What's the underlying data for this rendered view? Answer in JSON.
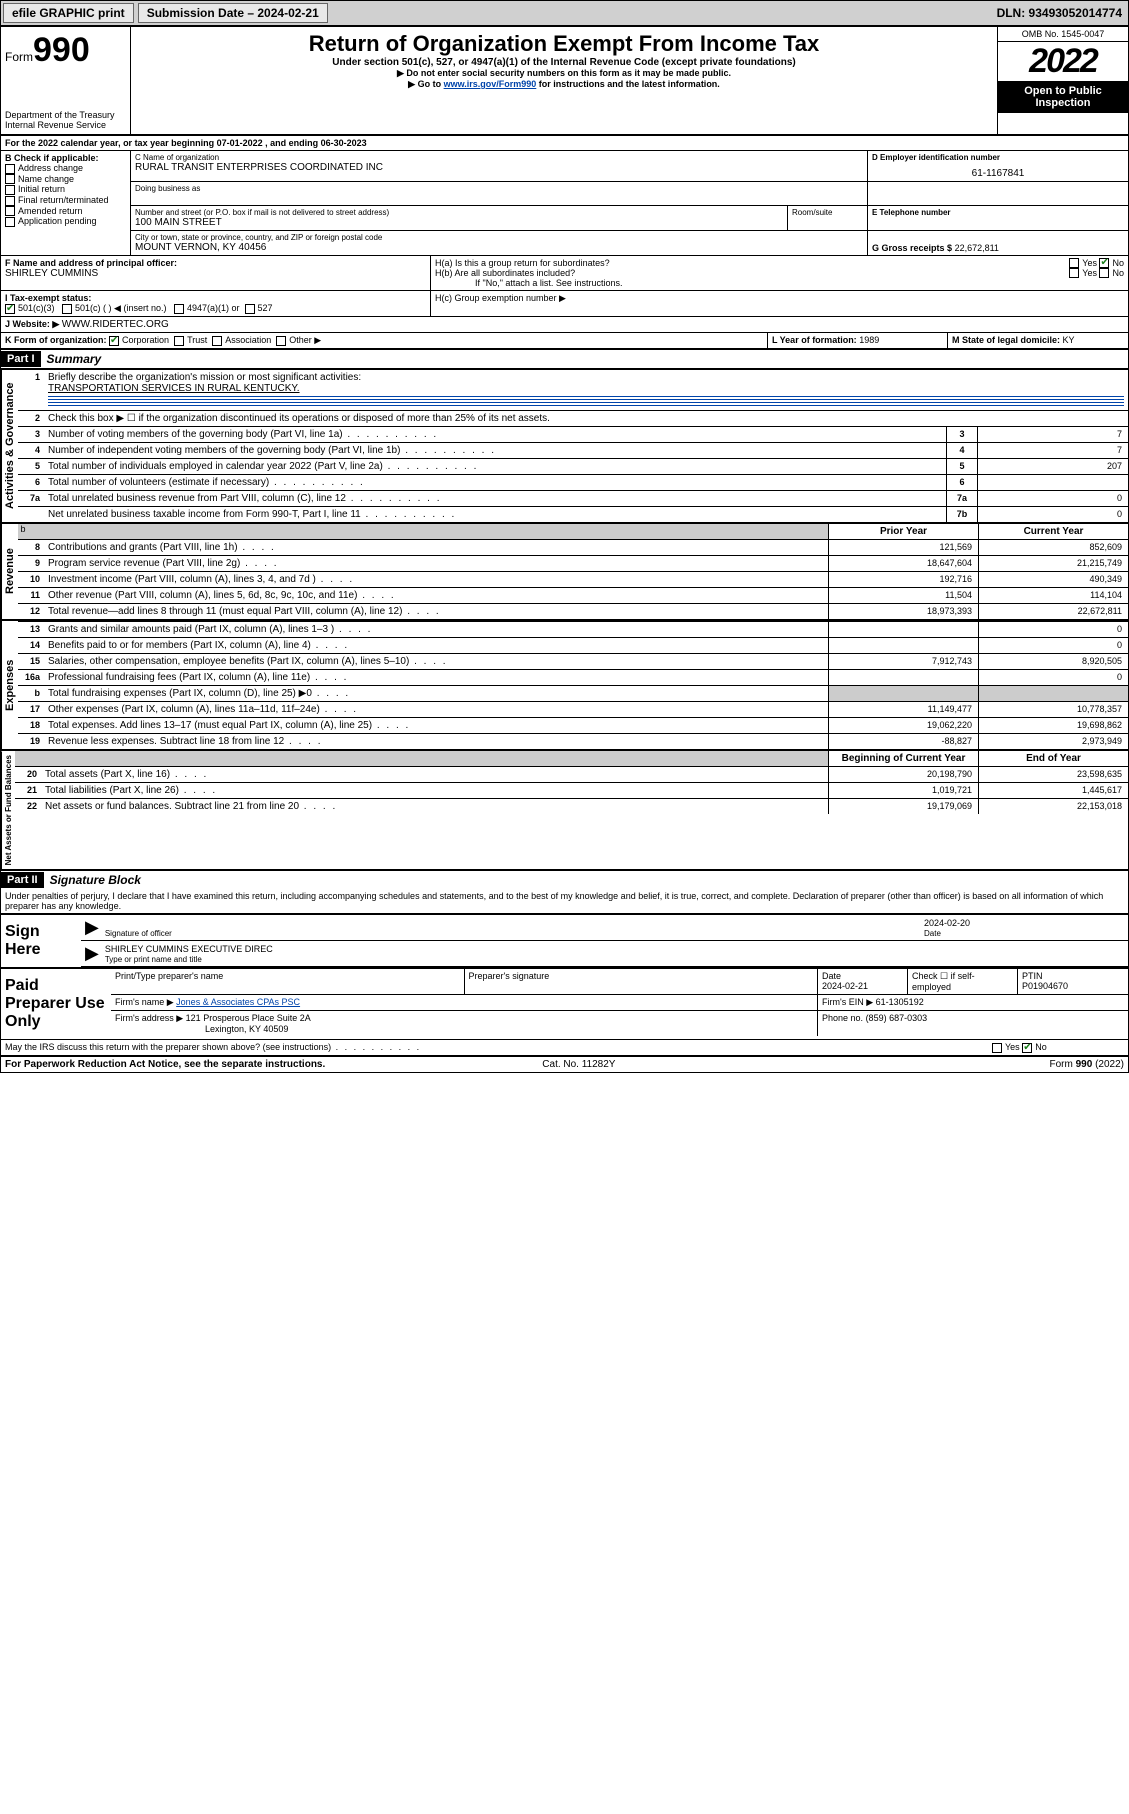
{
  "topbar": {
    "efile": "efile GRAPHIC print",
    "sub_label": "Submission Date – 2024-02-21",
    "dln": "DLN: 93493052014774"
  },
  "header": {
    "form_prefix": "Form",
    "form_no": "990",
    "dept": "Department of the Treasury",
    "irs": "Internal Revenue Service",
    "title": "Return of Organization Exempt From Income Tax",
    "subtitle": "Under section 501(c), 527, or 4947(a)(1) of the Internal Revenue Code (except private foundations)",
    "instr1": "▶ Do not enter social security numbers on this form as it may be made public.",
    "instr2_pre": "▶ Go to ",
    "instr2_link": "www.irs.gov/Form990",
    "instr2_post": " for instructions and the latest information.",
    "omb": "OMB No. 1545-0047",
    "year": "2022",
    "open": "Open to Public Inspection"
  },
  "lineA": "For the 2022 calendar year, or tax year beginning 07-01-2022   , and ending 06-30-2023",
  "boxB": {
    "label": "B Check if applicable:",
    "items": [
      "Address change",
      "Name change",
      "Initial return",
      "Final return/terminated",
      "Amended return",
      "Application pending"
    ]
  },
  "boxC": {
    "label": "C Name of organization",
    "name": "RURAL TRANSIT ENTERPRISES COORDINATED INC",
    "dba_label": "Doing business as",
    "street_label": "Number and street (or P.O. box if mail is not delivered to street address)",
    "room_label": "Room/suite",
    "street": "100 MAIN STREET",
    "city_label": "City or town, state or province, country, and ZIP or foreign postal code",
    "city": "MOUNT VERNON, KY  40456"
  },
  "boxD": {
    "label": "D Employer identification number",
    "val": "61-1167841"
  },
  "boxE": {
    "label": "E Telephone number",
    "val": ""
  },
  "boxG": {
    "label": "G Gross receipts $",
    "val": "22,672,811"
  },
  "boxF": {
    "label": "F  Name and address of principal officer:",
    "val": "SHIRLEY CUMMINS"
  },
  "boxH": {
    "ha": "H(a)  Is this a group return for subordinates?",
    "hb": "H(b)  Are all subordinates included?",
    "hb_note": "If \"No,\" attach a list. See instructions.",
    "hc": "H(c)  Group exemption number ▶",
    "yes": "Yes",
    "no": "No"
  },
  "boxI": {
    "label": "I    Tax-exempt status:",
    "c3": "501(c)(3)",
    "c": "501(c) (   ) ◀ (insert no.)",
    "a1": "4947(a)(1) or",
    "s527": "527"
  },
  "boxJ": {
    "label": "J    Website: ▶",
    "val": "WWW.RIDERTEC.ORG"
  },
  "boxK": {
    "label": "K Form of organization:",
    "opts": [
      "Corporation",
      "Trust",
      "Association",
      "Other ▶"
    ]
  },
  "boxL": {
    "label": "L Year of formation:",
    "val": "1989"
  },
  "boxM": {
    "label": "M State of legal domicile:",
    "val": "KY"
  },
  "partI": {
    "hdr": "Part I",
    "title": "Summary",
    "q1": "Briefly describe the organization's mission or most significant activities:",
    "q1v": "TRANSPORTATION SERVICES IN RURAL KENTUCKY.",
    "q2": "Check this box ▶ ☐  if the organization discontinued its operations or disposed of more than 25% of its net assets.",
    "rows_gov": [
      {
        "n": "3",
        "d": "Number of voting members of the governing body (Part VI, line 1a)",
        "k": "3",
        "v": "7"
      },
      {
        "n": "4",
        "d": "Number of independent voting members of the governing body (Part VI, line 1b)",
        "k": "4",
        "v": "7"
      },
      {
        "n": "5",
        "d": "Total number of individuals employed in calendar year 2022 (Part V, line 2a)",
        "k": "5",
        "v": "207"
      },
      {
        "n": "6",
        "d": "Total number of volunteers (estimate if necessary)",
        "k": "6",
        "v": ""
      },
      {
        "n": "7a",
        "d": "Total unrelated business revenue from Part VIII, column (C), line 12",
        "k": "7a",
        "v": "0"
      },
      {
        "n": "",
        "d": "Net unrelated business taxable income from Form 990-T, Part I, line 11",
        "k": "7b",
        "v": "0"
      }
    ],
    "colh_prior": "Prior Year",
    "colh_curr": "Current Year",
    "rows_rev": [
      {
        "n": "8",
        "d": "Contributions and grants (Part VIII, line 1h)",
        "p": "121,569",
        "c": "852,609"
      },
      {
        "n": "9",
        "d": "Program service revenue (Part VIII, line 2g)",
        "p": "18,647,604",
        "c": "21,215,749"
      },
      {
        "n": "10",
        "d": "Investment income (Part VIII, column (A), lines 3, 4, and 7d )",
        "p": "192,716",
        "c": "490,349"
      },
      {
        "n": "11",
        "d": "Other revenue (Part VIII, column (A), lines 5, 6d, 8c, 9c, 10c, and 11e)",
        "p": "11,504",
        "c": "114,104"
      },
      {
        "n": "12",
        "d": "Total revenue—add lines 8 through 11 (must equal Part VIII, column (A), line 12)",
        "p": "18,973,393",
        "c": "22,672,811"
      }
    ],
    "rows_exp": [
      {
        "n": "13",
        "d": "Grants and similar amounts paid (Part IX, column (A), lines 1–3 )",
        "p": "",
        "c": "0"
      },
      {
        "n": "14",
        "d": "Benefits paid to or for members (Part IX, column (A), line 4)",
        "p": "",
        "c": "0"
      },
      {
        "n": "15",
        "d": "Salaries, other compensation, employee benefits (Part IX, column (A), lines 5–10)",
        "p": "7,912,743",
        "c": "8,920,505"
      },
      {
        "n": "16a",
        "d": "Professional fundraising fees (Part IX, column (A), line 11e)",
        "p": "",
        "c": "0"
      },
      {
        "n": "b",
        "d": "Total fundraising expenses (Part IX, column (D), line 25) ▶0",
        "p": "GREY",
        "c": "GREY"
      },
      {
        "n": "17",
        "d": "Other expenses (Part IX, column (A), lines 11a–11d, 11f–24e)",
        "p": "11,149,477",
        "c": "10,778,357"
      },
      {
        "n": "18",
        "d": "Total expenses. Add lines 13–17 (must equal Part IX, column (A), line 25)",
        "p": "19,062,220",
        "c": "19,698,862"
      },
      {
        "n": "19",
        "d": "Revenue less expenses. Subtract line 18 from line 12",
        "p": "-88,827",
        "c": "2,973,949"
      }
    ],
    "colh_beg": "Beginning of Current Year",
    "colh_end": "End of Year",
    "rows_net": [
      {
        "n": "20",
        "d": "Total assets (Part X, line 16)",
        "p": "20,198,790",
        "c": "23,598,635"
      },
      {
        "n": "21",
        "d": "Total liabilities (Part X, line 26)",
        "p": "1,019,721",
        "c": "1,445,617"
      },
      {
        "n": "22",
        "d": "Net assets or fund balances. Subtract line 21 from line 20",
        "p": "19,179,069",
        "c": "22,153,018"
      }
    ],
    "vlabels": {
      "gov": "Activities & Governance",
      "rev": "Revenue",
      "exp": "Expenses",
      "net": "Net Assets or Fund Balances"
    }
  },
  "partII": {
    "hdr": "Part II",
    "title": "Signature Block",
    "penalty": "Under penalties of perjury, I declare that I have examined this return, including accompanying schedules and statements, and to the best of my knowledge and belief, it is true, correct, and complete. Declaration of preparer (other than officer) is based on all information of which preparer has any knowledge.",
    "sign_here": "Sign Here",
    "sig_officer": "Signature of officer",
    "sig_date": "2024-02-20",
    "date_lbl": "Date",
    "officer_name": "SHIRLEY CUMMINS EXECUTIVE DIREC",
    "type_name": "Type or print name and title",
    "paid": "Paid Preparer Use Only",
    "prep_name_lbl": "Print/Type preparer's name",
    "prep_sig_lbl": "Preparer's signature",
    "prep_date_lbl": "Date",
    "prep_date": "2024-02-21",
    "check_self": "Check ☐ if self-employed",
    "ptin_lbl": "PTIN",
    "ptin": "P01904670",
    "firm_name_lbl": "Firm's name   ▶",
    "firm_name": "Jones & Associates CPAs PSC",
    "firm_ein_lbl": "Firm's EIN ▶",
    "firm_ein": "61-1305192",
    "firm_addr_lbl": "Firm's address ▶",
    "firm_addr1": "121 Prosperous Place Suite 2A",
    "firm_addr2": "Lexington, KY  40509",
    "phone_lbl": "Phone no.",
    "phone": "(859) 687-0303",
    "discuss": "May the IRS discuss this return with the preparer shown above? (see instructions)"
  },
  "footer": {
    "pra": "For Paperwork Reduction Act Notice, see the separate instructions.",
    "cat": "Cat. No. 11282Y",
    "form": "Form 990 (2022)"
  }
}
